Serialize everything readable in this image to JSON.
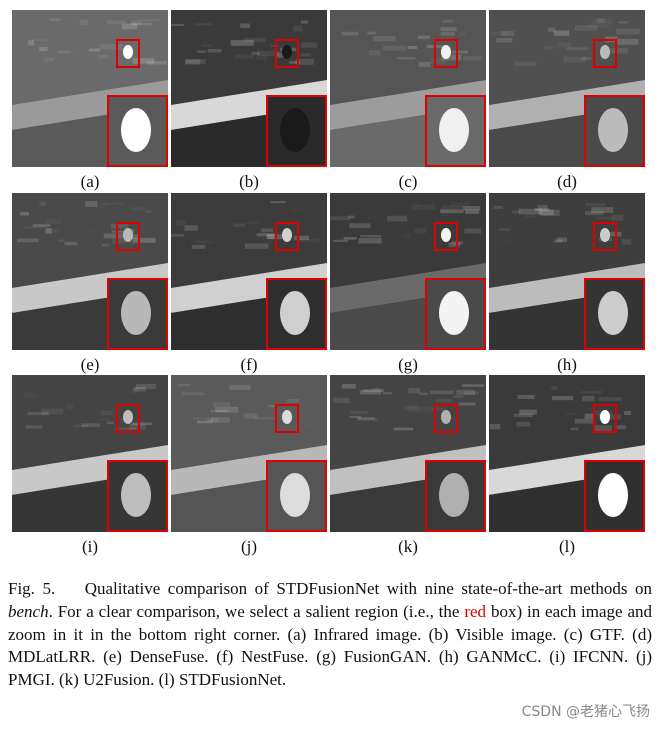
{
  "figure": {
    "panels": [
      "(a)",
      "(b)",
      "(c)",
      "(d)",
      "(e)",
      "(f)",
      "(g)",
      "(h)",
      "(i)",
      "(j)",
      "(k)",
      "(l)"
    ],
    "caption": {
      "label": "Fig. 5.",
      "text_1": "Qualitative comparison of STDFusionNet with nine state-of-the-art methods on",
      "emphasis": "bench",
      "text_2": ". For a clear comparison, we select a salient region (i.e., the",
      "highlight": "red",
      "text_3": "box) in each image and zoom in it in the bottom right corner. (a) Infrared image. (b) Visible image. (c) GTF. (d) MDLatLRR. (e) DenseFuse. (f) NestFuse. (g) FusionGAN. (h) GANMcC. (i) IFCNN. (j) PMGI. (k) U2Fusion. (l) STDFusionNet."
    },
    "watermark": "CSDN @老猪心飞扬"
  }
}
